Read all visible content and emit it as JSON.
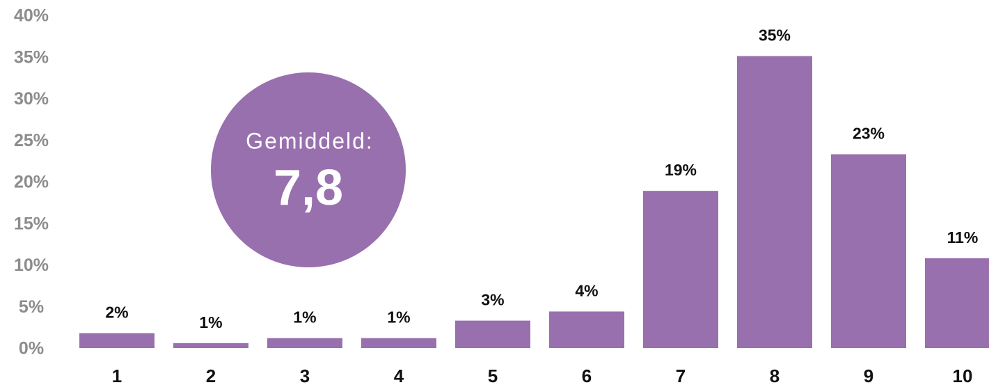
{
  "chart_data": {
    "type": "bar",
    "categories": [
      "1",
      "2",
      "3",
      "4",
      "5",
      "6",
      "7",
      "8",
      "9",
      "10"
    ],
    "values": [
      1.8,
      0.6,
      1.2,
      1.2,
      3.3,
      4.4,
      18.9,
      35.1,
      23.3,
      10.8
    ],
    "value_labels": [
      "2%",
      "1%",
      "1%",
      "1%",
      "3%",
      "4%",
      "19%",
      "35%",
      "23%",
      "11%"
    ],
    "color": "#9970ae",
    "ylim": [
      0,
      40
    ],
    "yticks": [
      {
        "value": 0,
        "label": "0%"
      },
      {
        "value": 5,
        "label": "5%"
      },
      {
        "value": 10,
        "label": "10%"
      },
      {
        "value": 15,
        "label": "15%"
      },
      {
        "value": 20,
        "label": "20%"
      },
      {
        "value": 25,
        "label": "25%"
      },
      {
        "value": 30,
        "label": "30%"
      },
      {
        "value": 35,
        "label": "35%"
      },
      {
        "value": 40,
        "label": "40%"
      }
    ],
    "grid": false,
    "annotation": {
      "label": "Gemiddeld:",
      "value": "7,8"
    }
  }
}
